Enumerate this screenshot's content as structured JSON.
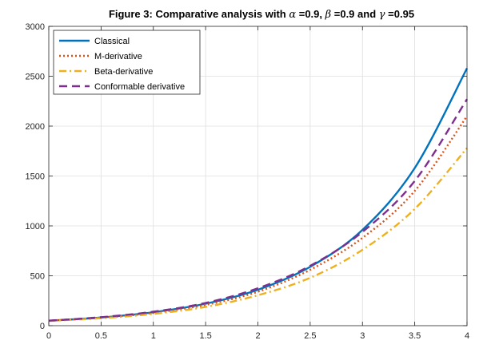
{
  "chart_data": {
    "type": "line",
    "title": {
      "prefix": "Figure 3: Comparative analysis with ",
      "sym1": "α",
      "mid1": " =0.9, ",
      "sym2": "β",
      "mid2": " =0.9 and ",
      "sym3": "γ",
      "suffix": " =0.95"
    },
    "xlabel": "",
    "ylabel": "",
    "xlim": [
      0,
      4
    ],
    "ylim": [
      0,
      3000
    ],
    "grid": true,
    "legend_position": "top-left",
    "x_ticks": [
      0,
      0.5,
      1,
      1.5,
      2,
      2.5,
      3,
      3.5,
      4
    ],
    "x_tick_labels": [
      "0",
      "0.5",
      "1",
      "1.5",
      "2",
      "2.5",
      "3",
      "3.5",
      "4"
    ],
    "y_ticks": [
      0,
      500,
      1000,
      1500,
      2000,
      2500,
      3000
    ],
    "y_tick_labels": [
      "0",
      "500",
      "1000",
      "1500",
      "2000",
      "2500",
      "3000"
    ],
    "x": [
      0,
      0.5,
      1,
      1.5,
      2,
      2.5,
      3,
      3.5,
      4
    ],
    "series": [
      {
        "name": "Classical",
        "color": "#0072bd",
        "style": "solid",
        "values": [
          50,
          82,
          135,
          220,
          360,
          590,
          960,
          1580,
          2580
        ]
      },
      {
        "name": "M-derivative",
        "color": "#d95319",
        "style": "dotted",
        "values": [
          50,
          80,
          128,
          208,
          340,
          560,
          880,
          1350,
          2100
        ]
      },
      {
        "name": "Beta-derivative",
        "color": "#edb120",
        "style": "dashdot",
        "values": [
          48,
          75,
          118,
          188,
          305,
          480,
          760,
          1170,
          1780
        ]
      },
      {
        "name": "Conformable derivative",
        "color": "#7e2f8e",
        "style": "dashed",
        "values": [
          50,
          85,
          140,
          228,
          375,
          600,
          940,
          1450,
          2270
        ]
      }
    ]
  }
}
